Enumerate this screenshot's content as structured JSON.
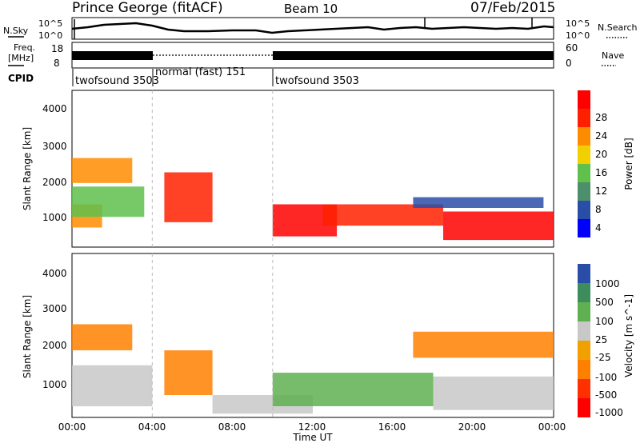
{
  "header": {
    "station": "Prince George (fitACF)",
    "beam": "Beam 10",
    "date": "07/Feb/2015"
  },
  "nsky_panel": {
    "left_label": "N.Sky",
    "right_label": "N.Search",
    "left_ticks": [
      "10^5",
      "10^0"
    ],
    "right_ticks": [
      "10^5",
      "10^0"
    ]
  },
  "freq_panel": {
    "left_label_1": "Freq.",
    "left_label_2": "[MHz]",
    "left_ticks": [
      "18",
      "8"
    ],
    "right_label": "Nave",
    "right_ticks": [
      "60",
      "0"
    ]
  },
  "cpid": {
    "label": "CPID",
    "segments": [
      {
        "name": "twofsound 3503",
        "start": 0.0,
        "end": 4.0
      },
      {
        "name": "normal (fast) 151",
        "start": 4.0,
        "end": 10.0
      },
      {
        "name": "twofsound 3503",
        "start": 10.0,
        "end": 24.0
      }
    ]
  },
  "time_axis": {
    "ticks": [
      "00:00",
      "04:00",
      "08:00",
      "12:00",
      "16:00",
      "20:00",
      "00:00"
    ],
    "label": "Time UT"
  },
  "chart_data": [
    {
      "type": "heatmap",
      "panel": "power",
      "ylabel": "Slant Range [km]",
      "yticks": [
        "1000",
        "2000",
        "3000",
        "4000"
      ],
      "ylim": [
        200,
        4600
      ],
      "xlim": [
        0,
        24
      ],
      "colorbar_label": "Power [dB]",
      "colorbar_ticks": [
        "4",
        "8",
        "12",
        "16",
        "20",
        "24",
        "28"
      ],
      "colorbar_colors": [
        "#0000ff",
        "#2a4ea8",
        "#4c8f6a",
        "#5fc04c",
        "#f0d000",
        "#ff8c00",
        "#ff2000",
        "#ff0000"
      ],
      "bands": [
        {
          "t0": 0.0,
          "t1": 1.5,
          "r0": 750,
          "r1": 1400,
          "color": "#ff8c00"
        },
        {
          "t0": 0.0,
          "t1": 3.6,
          "r0": 1050,
          "r1": 1900,
          "color": "#5fc04c"
        },
        {
          "t0": 0.0,
          "t1": 3.0,
          "r0": 2000,
          "r1": 2700,
          "color": "#ff8c00"
        },
        {
          "t0": 4.6,
          "t1": 7.0,
          "r0": 900,
          "r1": 2300,
          "color": "#ff2000"
        },
        {
          "t0": 10.0,
          "t1": 13.2,
          "r0": 500,
          "r1": 1400,
          "color": "#ff0000"
        },
        {
          "t0": 12.5,
          "t1": 18.5,
          "r0": 800,
          "r1": 1400,
          "color": "#ff2000"
        },
        {
          "t0": 18.5,
          "t1": 24.0,
          "r0": 400,
          "r1": 1200,
          "color": "#ff0000"
        },
        {
          "t0": 17.0,
          "t1": 23.5,
          "r0": 1300,
          "r1": 1600,
          "color": "#2a4ea8"
        }
      ]
    },
    {
      "type": "heatmap",
      "panel": "velocity",
      "ylabel": "Slant Range [km]",
      "yticks": [
        "1000",
        "2000",
        "3000",
        "4000"
      ],
      "ylim": [
        200,
        4600
      ],
      "xlim": [
        0,
        24
      ],
      "colorbar_label": "Velocity [m s^-1]",
      "colorbar_ticks": [
        "1000",
        "500",
        "100",
        "25",
        "-25",
        "-100",
        "-500",
        "-1000"
      ],
      "colorbar_colors": [
        "#2a4ea8",
        "#3c8c5c",
        "#5fb050",
        "#c8c8c8",
        "#f0a000",
        "#ff8000",
        "#ff3000",
        "#ff0000"
      ],
      "bands": [
        {
          "t0": 0.0,
          "t1": 4.0,
          "r0": 500,
          "r1": 1600,
          "color": "#c8c8c8"
        },
        {
          "t0": 0.0,
          "t1": 3.0,
          "r0": 2000,
          "r1": 2700,
          "color": "#ff8000"
        },
        {
          "t0": 4.6,
          "t1": 7.0,
          "r0": 800,
          "r1": 2000,
          "color": "#ff8000"
        },
        {
          "t0": 7.0,
          "t1": 12.0,
          "r0": 300,
          "r1": 800,
          "color": "#c8c8c8"
        },
        {
          "t0": 10.0,
          "t1": 18.0,
          "r0": 500,
          "r1": 1400,
          "color": "#5fb050"
        },
        {
          "t0": 18.0,
          "t1": 24.0,
          "r0": 400,
          "r1": 1300,
          "color": "#c8c8c8"
        },
        {
          "t0": 17.0,
          "t1": 24.0,
          "r0": 1800,
          "r1": 2500,
          "color": "#ff8000"
        }
      ]
    }
  ]
}
